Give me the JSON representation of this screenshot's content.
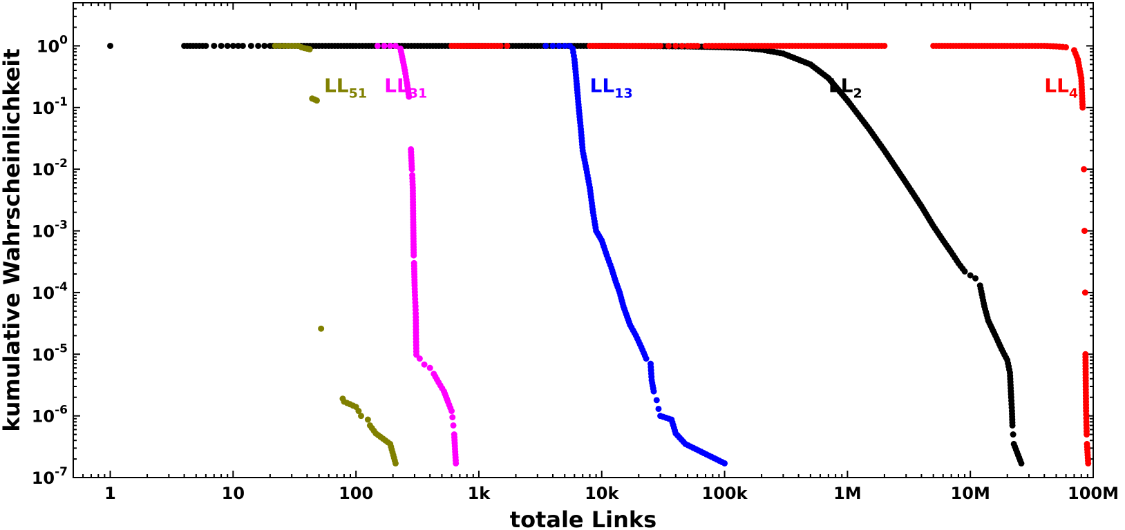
{
  "chart_data": {
    "type": "scatter",
    "title": "",
    "xlabel": "totale Links",
    "ylabel": "kumulative Wahrscheinlichkeit",
    "x_scale": "log",
    "y_scale": "log",
    "xlim": [
      0.5,
      100000000
    ],
    "ylim": [
      1e-07,
      5
    ],
    "grid": false,
    "legend": "none",
    "x_ticks": [
      {
        "value": 1,
        "label": "1"
      },
      {
        "value": 10,
        "label": "10"
      },
      {
        "value": 100,
        "label": "100"
      },
      {
        "value": 1000,
        "label": "1k"
      },
      {
        "value": 10000,
        "label": "10k"
      },
      {
        "value": 100000,
        "label": "100k"
      },
      {
        "value": 1000000,
        "label": "1M"
      },
      {
        "value": 10000000,
        "label": "10M"
      },
      {
        "value": 100000000,
        "label": "100M"
      }
    ],
    "y_ticks": [
      {
        "value": 1,
        "base": "10",
        "exp": "0"
      },
      {
        "value": 0.1,
        "base": "10",
        "exp": "-1"
      },
      {
        "value": 0.01,
        "base": "10",
        "exp": "-2"
      },
      {
        "value": 0.001,
        "base": "10",
        "exp": "-3"
      },
      {
        "value": 0.0001,
        "base": "10",
        "exp": "-4"
      },
      {
        "value": 1e-05,
        "base": "10",
        "exp": "-5"
      },
      {
        "value": 1e-06,
        "base": "10",
        "exp": "-6"
      },
      {
        "value": 1e-07,
        "base": "10",
        "exp": "-7"
      }
    ],
    "series": [
      {
        "label_main": "LL",
        "label_sub": "2",
        "color": "#000000",
        "label_at": [
          700000,
          0.23
        ],
        "points": [
          [
            1,
            1
          ],
          [
            4,
            1
          ],
          [
            5,
            1
          ],
          [
            6,
            1
          ],
          [
            7,
            1
          ],
          [
            8,
            1
          ],
          [
            9,
            1
          ],
          [
            10,
            1
          ],
          [
            11,
            1
          ],
          [
            12,
            1
          ],
          [
            14,
            1
          ],
          [
            16,
            1
          ],
          [
            18,
            1
          ],
          [
            20,
            1
          ],
          [
            25,
            1
          ],
          [
            30,
            1
          ],
          [
            40,
            1
          ],
          [
            50,
            1
          ],
          [
            60,
            1
          ],
          [
            80,
            1
          ],
          [
            100,
            1
          ],
          [
            120,
            1
          ],
          [
            150,
            1
          ],
          [
            200,
            1
          ],
          [
            250,
            1
          ],
          [
            300,
            1
          ],
          [
            400,
            1
          ],
          [
            500,
            1
          ],
          [
            600,
            1
          ],
          [
            800,
            1
          ],
          [
            1000,
            1
          ],
          [
            1500,
            1
          ],
          [
            2000,
            1
          ],
          [
            3000,
            1
          ],
          [
            4000,
            1
          ],
          [
            6000,
            1
          ],
          [
            8000,
            1
          ],
          [
            12000,
            1
          ],
          [
            20000,
            0.995
          ],
          [
            30000,
            0.99
          ],
          [
            50000,
            0.98
          ],
          [
            80000,
            0.96
          ],
          [
            100000,
            0.95
          ],
          [
            150000,
            0.92
          ],
          [
            200000,
            0.87
          ],
          [
            300000,
            0.75
          ],
          [
            500000,
            0.5
          ],
          [
            700000,
            0.3
          ],
          [
            1000000,
            0.13
          ],
          [
            1500000,
            0.045
          ],
          [
            2000000,
            0.02
          ],
          [
            3000000,
            0.006
          ],
          [
            4000000,
            0.0025
          ],
          [
            5000000,
            0.0012
          ],
          [
            6000000,
            0.0007
          ],
          [
            7000000,
            0.00045
          ],
          [
            8000000,
            0.0003
          ],
          [
            9000000,
            0.00022
          ],
          [
            10000000,
            0.00019
          ],
          [
            11000000,
            0.00017
          ],
          [
            12000000,
            0.00013
          ],
          [
            13000000,
            6e-05
          ],
          [
            14000000,
            3.5e-05
          ],
          [
            16000000,
            2e-05
          ],
          [
            18000000,
            1.2e-05
          ],
          [
            20000000,
            8e-06
          ],
          [
            21000000,
            5e-06
          ],
          [
            21500000,
            2e-06
          ],
          [
            21800000,
            1.2e-06
          ],
          [
            22000000,
            7e-07
          ],
          [
            22300000,
            5e-07
          ],
          [
            22600000,
            3.5e-07
          ],
          [
            26000000,
            1.7e-07
          ]
        ]
      },
      {
        "label_main": "LL",
        "label_sub": "4",
        "color": "#ff0000",
        "label_at": [
          40000000,
          0.23
        ],
        "points": [
          [
            600,
            1
          ],
          [
            1200,
            1
          ],
          [
            1500,
            1
          ],
          [
            1700,
            1
          ],
          [
            8000,
            1
          ],
          [
            15000,
            1
          ],
          [
            20000,
            1
          ],
          [
            25000,
            1
          ],
          [
            30000,
            1
          ],
          [
            35000,
            1
          ],
          [
            40000,
            1
          ],
          [
            45000,
            1
          ],
          [
            50000,
            1
          ],
          [
            60000,
            1
          ],
          [
            70000,
            1
          ],
          [
            90000,
            1
          ],
          [
            120000,
            1
          ],
          [
            150000,
            1
          ],
          [
            200000,
            1
          ],
          [
            300000,
            1
          ],
          [
            500000,
            1
          ],
          [
            1000000,
            1
          ],
          [
            2000000,
            1
          ],
          [
            5000000,
            1
          ],
          [
            10000000,
            1
          ],
          [
            20000000,
            1
          ],
          [
            30000000,
            1
          ],
          [
            40000000,
            1
          ],
          [
            50000000,
            0.98
          ],
          [
            60000000,
            0.95
          ],
          [
            70000000,
            0.85
          ],
          [
            75000000,
            0.6
          ],
          [
            80000000,
            0.3
          ],
          [
            82000000,
            0.1
          ],
          [
            84000000,
            0.01
          ],
          [
            85000000,
            0.001
          ],
          [
            86000000,
            0.0001
          ],
          [
            86500000,
            1e-05
          ],
          [
            87000000,
            3e-06
          ],
          [
            87500000,
            1.2e-06
          ],
          [
            88000000,
            8e-07
          ],
          [
            88500000,
            5e-07
          ],
          [
            89000000,
            3.5e-07
          ],
          [
            91000000,
            1.7e-07
          ]
        ]
      },
      {
        "label_main": "LL",
        "label_sub": "13",
        "color": "#0000ff",
        "label_at": [
          8000,
          0.23
        ],
        "points": [
          [
            3500,
            1
          ],
          [
            4000,
            1
          ],
          [
            4500,
            1
          ],
          [
            5000,
            1
          ],
          [
            5500,
            1
          ],
          [
            5800,
            0.9
          ],
          [
            6000,
            0.6
          ],
          [
            6200,
            0.3
          ],
          [
            6500,
            0.1
          ],
          [
            6800,
            0.04
          ],
          [
            7000,
            0.02
          ],
          [
            7500,
            0.01
          ],
          [
            8000,
            0.005
          ],
          [
            8500,
            0.002
          ],
          [
            9000,
            0.001
          ],
          [
            10000,
            0.0007
          ],
          [
            11000,
            0.0004
          ],
          [
            12000,
            0.00025
          ],
          [
            13000,
            0.00015
          ],
          [
            14000,
            0.0001
          ],
          [
            15000,
            6e-05
          ],
          [
            17000,
            3e-05
          ],
          [
            19000,
            2e-05
          ],
          [
            21000,
            1.3e-05
          ],
          [
            23000,
            8.5e-06
          ],
          [
            25000,
            7e-06
          ],
          [
            25500,
            3.8e-06
          ],
          [
            26500,
            2.5e-06
          ],
          [
            28000,
            1.8e-06
          ],
          [
            29000,
            1.3e-06
          ],
          [
            30000,
            1e-06
          ],
          [
            37000,
            8.7e-07
          ],
          [
            40000,
            5.2e-07
          ],
          [
            48000,
            3.5e-07
          ],
          [
            100000,
            1.7e-07
          ]
        ]
      },
      {
        "label_main": "LL",
        "label_sub": "31",
        "color": "#ff00ff",
        "label_at": [
          170,
          0.23
        ],
        "points": [
          [
            150,
            1
          ],
          [
            170,
            1
          ],
          [
            190,
            1
          ],
          [
            210,
            1
          ],
          [
            230,
            0.9
          ],
          [
            240,
            0.6
          ],
          [
            250,
            0.4
          ],
          [
            260,
            0.25
          ],
          [
            270,
            0.15
          ],
          [
            280,
            0.021
          ],
          [
            285,
            0.01
          ],
          [
            287,
            0.008
          ],
          [
            290,
            0.005
          ],
          [
            292,
            0.0017
          ],
          [
            295,
            0.0004
          ],
          [
            297,
            0.0003
          ],
          [
            300,
            0.00013
          ],
          [
            302,
            9e-05
          ],
          [
            305,
            6e-05
          ],
          [
            307,
            4e-05
          ],
          [
            308,
            2e-05
          ],
          [
            310,
            9.8e-06
          ],
          [
            330,
            8.5e-06
          ],
          [
            360,
            6.8e-06
          ],
          [
            400,
            6e-06
          ],
          [
            430,
            4.8e-06
          ],
          [
            470,
            3.5e-06
          ],
          [
            520,
            2.5e-06
          ],
          [
            560,
            1.7e-06
          ],
          [
            600,
            1.2e-06
          ],
          [
            610,
            9.5e-07
          ],
          [
            620,
            7e-07
          ],
          [
            630,
            5e-07
          ],
          [
            650,
            1.7e-07
          ]
        ]
      },
      {
        "label_main": "LL",
        "label_sub": "51",
        "color": "#808000",
        "label_at": [
          55,
          0.23
        ],
        "points": [
          [
            22,
            1
          ],
          [
            24,
            1
          ],
          [
            26,
            1
          ],
          [
            28,
            1
          ],
          [
            30,
            1
          ],
          [
            32,
            1
          ],
          [
            34,
            1
          ],
          [
            36,
            0.95
          ],
          [
            38,
            0.92
          ],
          [
            40,
            0.9
          ],
          [
            42,
            0.88
          ],
          [
            44,
            0.14
          ],
          [
            46,
            0.135
          ],
          [
            48,
            0.13
          ],
          [
            52,
            2.6e-05
          ],
          [
            78,
            1.9e-06
          ],
          [
            80,
            1.7e-06
          ],
          [
            100,
            1.4e-06
          ],
          [
            105,
            1.2e-06
          ],
          [
            110,
            1e-06
          ],
          [
            125,
            8.7e-07
          ],
          [
            130,
            7e-07
          ],
          [
            145,
            5.2e-07
          ],
          [
            190,
            3.5e-07
          ],
          [
            210,
            1.7e-07
          ]
        ]
      }
    ]
  }
}
